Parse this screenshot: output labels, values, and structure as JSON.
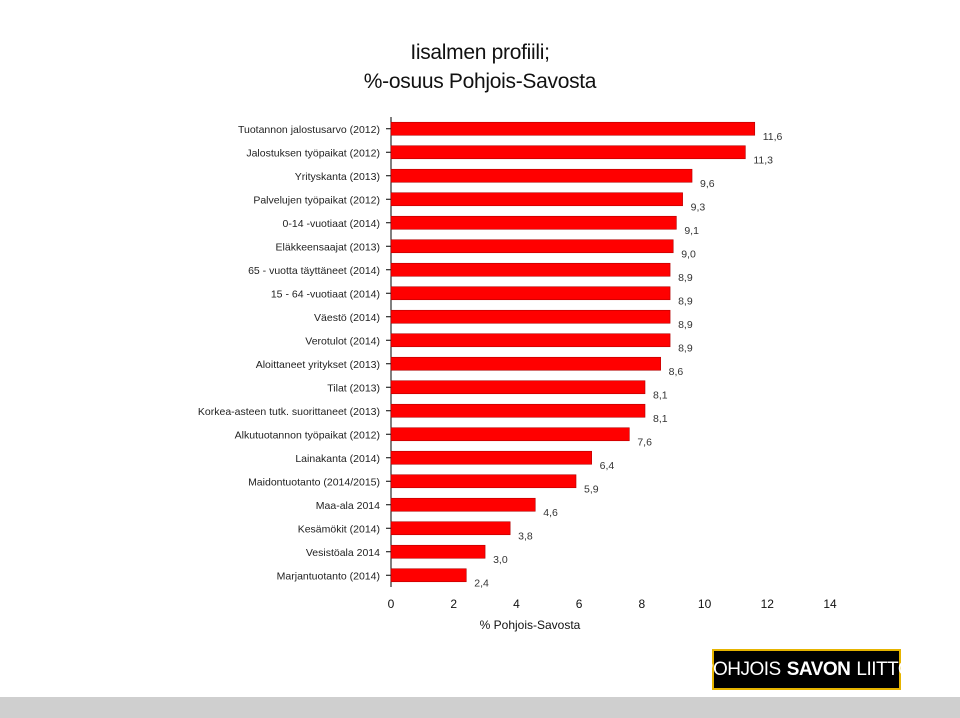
{
  "title": {
    "line1": "Iisalmen profiili;",
    "line2": "%-osuus Pohjois-Savosta"
  },
  "logo": {
    "part1": "POHJOIS",
    "part2": "SAVON",
    "part3": "LIITTO"
  },
  "colors": {
    "bar": "#ff0000",
    "bar_edge": "#b30000",
    "text": "#222222",
    "axis": "#000000"
  },
  "chart_data": {
    "type": "bar",
    "orientation": "horizontal",
    "xlabel": "% Pohjois-Savosta",
    "ylabel": "",
    "xlim": [
      0,
      14
    ],
    "xticks": [
      0,
      2,
      4,
      6,
      8,
      10,
      12,
      14
    ],
    "grid": false,
    "legend": "none",
    "categories": [
      "Tuotannon jalostusarvo (2012)",
      "Jalostuksen työpaikat (2012)",
      "Yrityskanta (2013)",
      "Palvelujen työpaikat (2012)",
      "0-14 -vuotiaat (2014)",
      "Eläkkeensaajat (2013)",
      "65 - vuotta täyttäneet (2014)",
      "15 - 64 -vuotiaat (2014)",
      "Väestö (2014)",
      "Verotulot (2014)",
      "Aloittaneet yritykset (2013)",
      "Tilat (2013)",
      "Korkea-asteen tutk. suorittaneet (2013)",
      "Alkutuotannon työpaikat (2012)",
      "Lainakanta (2014)",
      "Maidontuotanto (2014/2015)",
      "Maa-ala 2014",
      "Kesämökit (2014)",
      "Vesistöala 2014",
      "Marjantuotanto (2014)"
    ],
    "values": [
      11.6,
      11.3,
      9.6,
      9.3,
      9.1,
      9.0,
      8.9,
      8.9,
      8.9,
      8.9,
      8.6,
      8.1,
      8.1,
      7.6,
      6.4,
      5.9,
      4.6,
      3.8,
      3.0,
      2.4
    ],
    "labels": [
      "11,6",
      "11,3",
      "9,6",
      "9,3",
      "9,1",
      "9,0",
      "8,9",
      "8,9",
      "8,9",
      "8,9",
      "8,6",
      "8,1",
      "8,1",
      "7,6",
      "6,4",
      "5,9",
      "4,6",
      "3,8",
      "3,0",
      "2,4"
    ],
    "tick_labels": [
      "0",
      "2",
      "4",
      "6",
      "8",
      "10",
      "12",
      "14"
    ]
  }
}
